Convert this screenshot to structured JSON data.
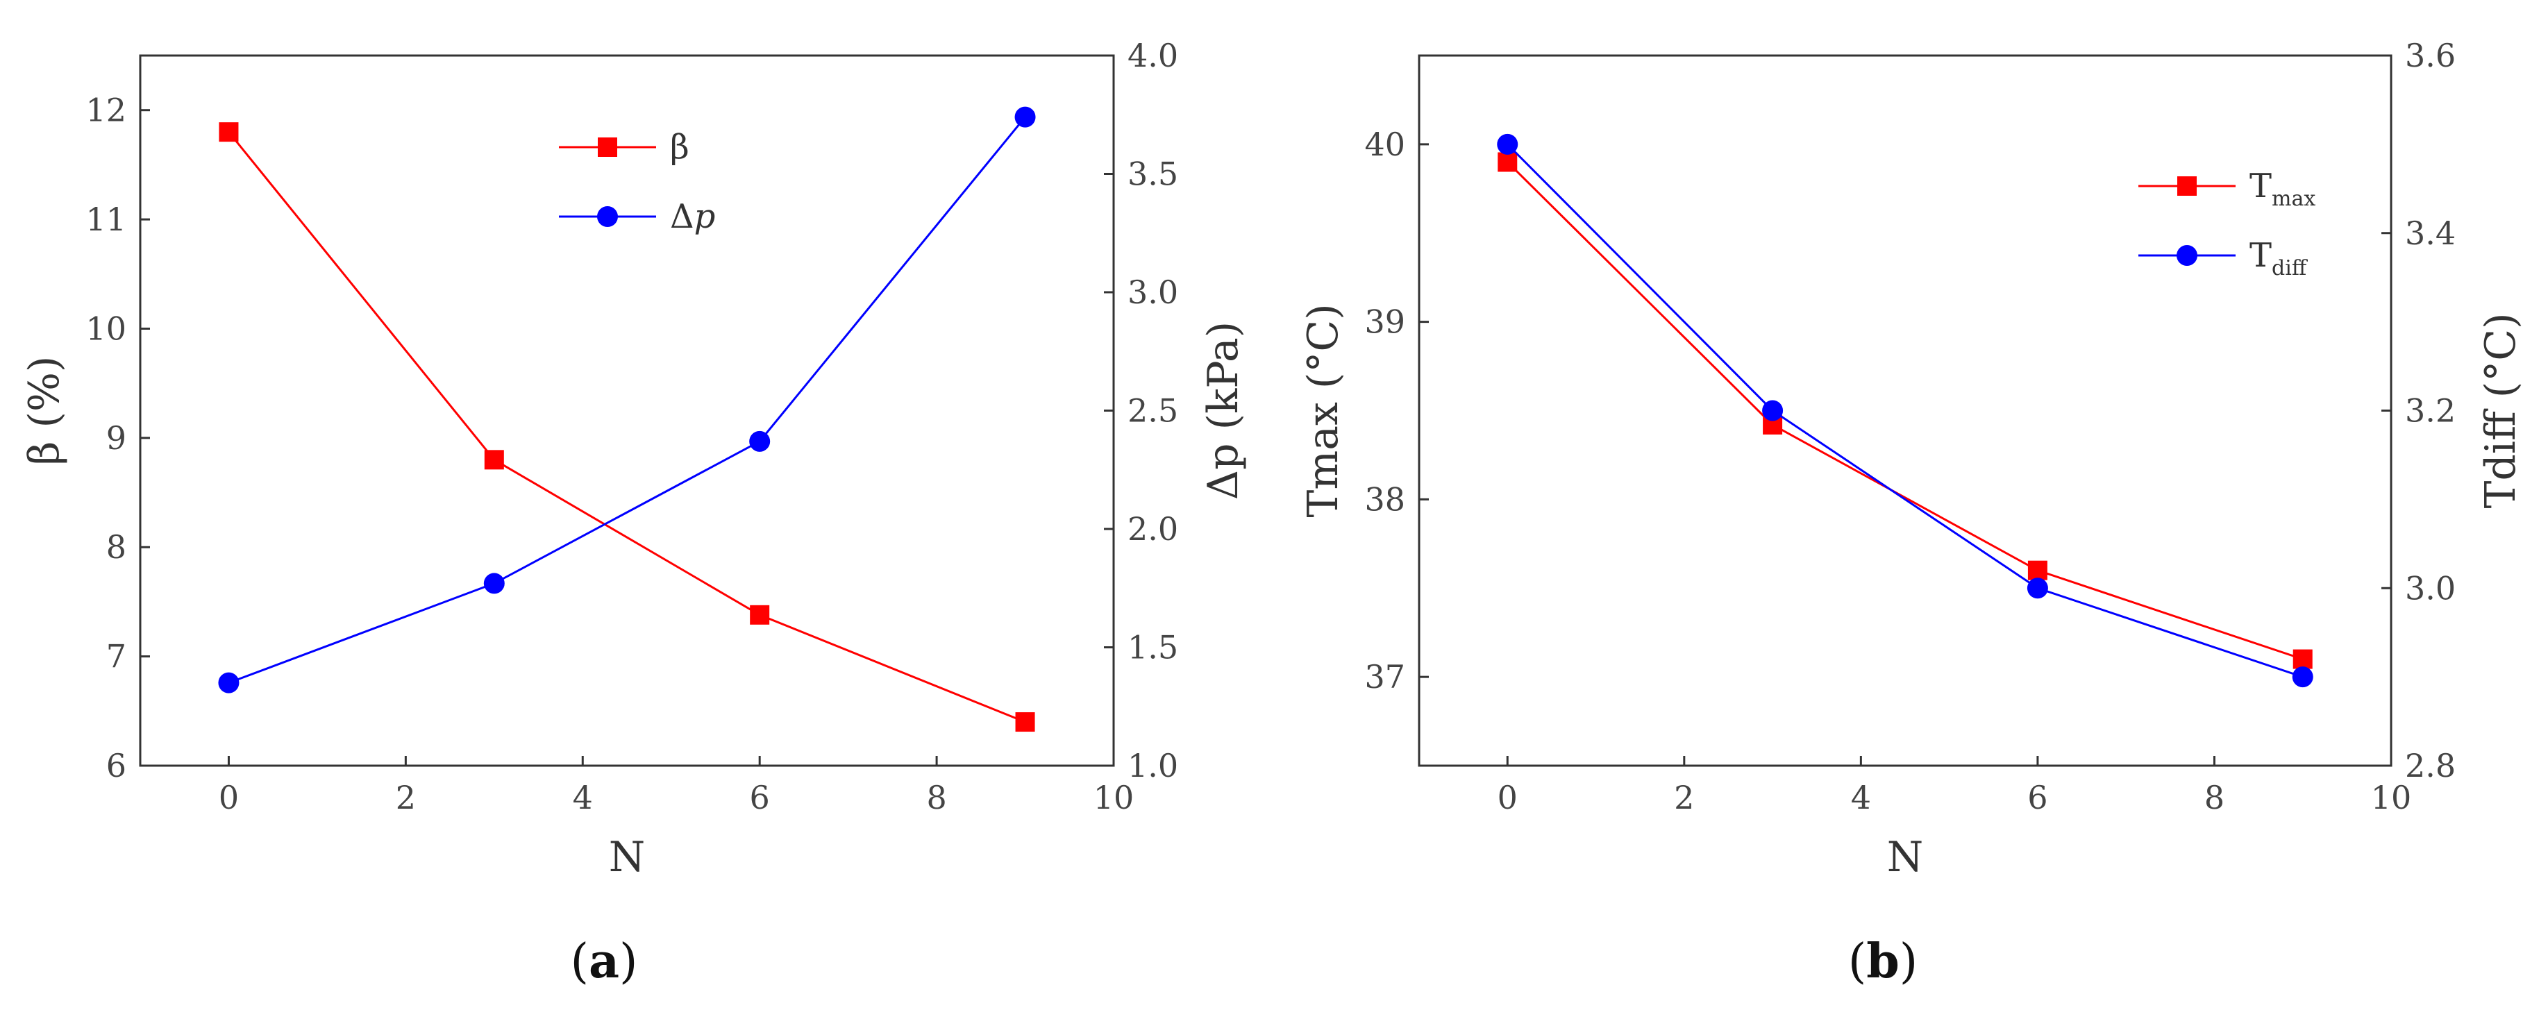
{
  "chart_data": [
    {
      "type": "line",
      "caption": {
        "open": "(",
        "letter": "a",
        "close": ")"
      },
      "xlabel": "N",
      "ylabel_left": "β (%)",
      "ylabel_right": "Δp (kPa)",
      "xlim": [
        -1,
        10
      ],
      "ylim_left": [
        6,
        12.5
      ],
      "ylim_right": [
        1.0,
        4.0
      ],
      "x_ticks": [
        0,
        2,
        4,
        6,
        8,
        10
      ],
      "x_tick_labels": [
        "0",
        "2",
        "4",
        "6",
        "8",
        "10"
      ],
      "y_left_ticks": [
        6,
        7,
        8,
        9,
        10,
        11,
        12
      ],
      "y_left_tick_labels": [
        "6",
        "7",
        "8",
        "9",
        "10",
        "11",
        "12"
      ],
      "y_right_ticks": [
        1.0,
        1.5,
        2.0,
        2.5,
        3.0,
        3.5,
        4.0
      ],
      "y_right_tick_labels": [
        "1.0",
        "1.5",
        "2.0",
        "2.5",
        "3.0",
        "3.5",
        "4.0"
      ],
      "grid": false,
      "legend_position": "top-center",
      "series": [
        {
          "name": "β",
          "axis": "left",
          "marker": "square",
          "color": "#ff0000",
          "x": [
            0,
            3,
            6,
            9
          ],
          "values": [
            11.8,
            8.8,
            7.38,
            6.4
          ]
        },
        {
          "name": "Δp",
          "name_italic_part": "p",
          "axis": "right",
          "marker": "circle",
          "color": "#0000ff",
          "x": [
            0,
            3,
            6,
            9
          ],
          "values": [
            1.35,
            1.77,
            2.37,
            3.74
          ]
        }
      ]
    },
    {
      "type": "line",
      "caption": {
        "open": "(",
        "letter": "b",
        "close": ")"
      },
      "xlabel": "N",
      "ylabel_left": "Tmax (°C)",
      "ylabel_right": "Tdiff (°C)",
      "xlim": [
        -1,
        10
      ],
      "ylim_left": [
        36.5,
        40.5
      ],
      "ylim_right": [
        2.8,
        3.6
      ],
      "x_ticks": [
        0,
        2,
        4,
        6,
        8,
        10
      ],
      "x_tick_labels": [
        "0",
        "2",
        "4",
        "6",
        "8",
        "10"
      ],
      "y_left_ticks": [
        37,
        38,
        39,
        40
      ],
      "y_left_tick_labels": [
        "37",
        "38",
        "39",
        "40"
      ],
      "y_right_ticks": [
        2.8,
        3.0,
        3.2,
        3.4,
        3.6
      ],
      "y_right_tick_labels": [
        "2.8",
        "3.0",
        "3.2",
        "3.4",
        "3.6"
      ],
      "grid": false,
      "legend_position": "top-right",
      "series": [
        {
          "name": "T",
          "name_subscript": "max",
          "axis": "left",
          "marker": "square",
          "color": "#ff0000",
          "x": [
            0,
            3,
            6,
            9
          ],
          "values": [
            39.9,
            38.42,
            37.6,
            37.1
          ]
        },
        {
          "name": "T",
          "name_subscript": "diff",
          "axis": "right",
          "marker": "circle",
          "color": "#0000ff",
          "x": [
            0,
            3,
            6,
            9
          ],
          "values": [
            3.5,
            3.2,
            3.0,
            2.9
          ]
        }
      ]
    }
  ]
}
